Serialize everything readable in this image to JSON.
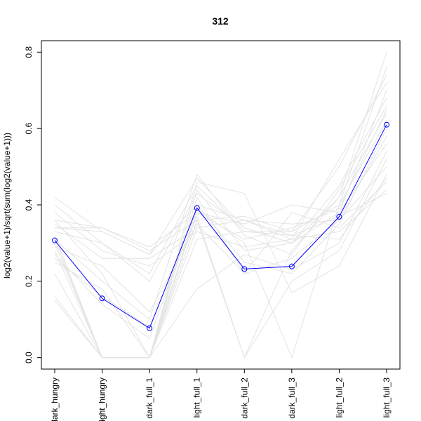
{
  "chart_data": {
    "type": "line",
    "title": "312",
    "xlabel": "",
    "ylabel": "log2(value+1)/sqrt(sum(log2(value+1)))",
    "ylim": [
      -0.03,
      0.83
    ],
    "yticks": [
      "0.0",
      "0.2",
      "0.4",
      "0.6",
      "0.8"
    ],
    "ytick_values": [
      0.0,
      0.2,
      0.4,
      0.6,
      0.8
    ],
    "categories": [
      "dark_hungry",
      "light_hungry",
      "dark_full_1",
      "light_full_1",
      "dark_full_2",
      "dark_full_3",
      "light_full_2",
      "light_full_3"
    ],
    "colors": {
      "highlight": "#0000ff",
      "background": "#e3e3e3",
      "frame": "#000000"
    },
    "highlight_series": {
      "values": [
        0.307,
        0.155,
        0.077,
        0.392,
        0.232,
        0.239,
        0.369,
        0.61
      ]
    },
    "background_series": [
      {
        "values": [
          0.42,
          0.33,
          0.27,
          0.47,
          0.34,
          0.3,
          0.42,
          0.8
        ]
      },
      {
        "values": [
          0.4,
          0.3,
          0.22,
          0.45,
          0.33,
          0.33,
          0.4,
          0.76
        ]
      },
      {
        "values": [
          0.36,
          0.34,
          0.28,
          0.36,
          0.37,
          0.33,
          0.5,
          0.74
        ]
      },
      {
        "values": [
          0.35,
          0.26,
          0.26,
          0.34,
          0.36,
          0.31,
          0.52,
          0.72
        ]
      },
      {
        "values": [
          0.34,
          0.34,
          0.29,
          0.38,
          0.35,
          0.4,
          0.38,
          0.7
        ]
      },
      {
        "values": [
          0.33,
          0.3,
          0.2,
          0.43,
          0.34,
          0.3,
          0.45,
          0.68
        ]
      },
      {
        "values": [
          0.31,
          0.2,
          0.1,
          0.48,
          0.32,
          0.27,
          0.44,
          0.66
        ]
      },
      {
        "values": [
          0.3,
          0.0,
          0.0,
          0.36,
          0.0,
          0.28,
          0.42,
          0.64
        ]
      },
      {
        "values": [
          0.28,
          0.0,
          0.0,
          0.39,
          0.3,
          0.0,
          0.4,
          0.62
        ]
      },
      {
        "values": [
          0.27,
          0.14,
          0.05,
          0.4,
          0.25,
          0.22,
          0.35,
          0.6
        ]
      },
      {
        "values": [
          0.25,
          0.18,
          0.0,
          0.42,
          0.22,
          0.26,
          0.36,
          0.58
        ]
      },
      {
        "values": [
          0.22,
          0.0,
          0.0,
          0.44,
          0.28,
          0.3,
          0.38,
          0.56
        ]
      },
      {
        "values": [
          0.16,
          0.0,
          0.0,
          0.18,
          0.27,
          0.23,
          0.3,
          0.54
        ]
      },
      {
        "values": [
          0.15,
          0.0,
          0.0,
          0.34,
          0.36,
          0.35,
          0.36,
          0.5
        ]
      },
      {
        "values": [
          0.36,
          0.22,
          0.0,
          0.46,
          0.43,
          0.17,
          0.24,
          0.48
        ]
      },
      {
        "values": [
          0.32,
          0.0,
          0.0,
          0.31,
          0.33,
          0.32,
          0.31,
          0.47
        ]
      },
      {
        "values": [
          0.29,
          0.24,
          0.12,
          0.35,
          0.22,
          0.38,
          0.34,
          0.46
        ]
      },
      {
        "values": [
          0.38,
          0.28,
          0.24,
          0.33,
          0.29,
          0.31,
          0.33,
          0.44
        ]
      },
      {
        "values": [
          0.34,
          0.33,
          0.27,
          0.4,
          0.36,
          0.32,
          0.37,
          0.43
        ]
      },
      {
        "values": [
          0.26,
          0.16,
          0.08,
          0.37,
          0.0,
          0.2,
          0.28,
          0.52
        ]
      },
      {
        "values": [
          0.31,
          0.0,
          0.0,
          0.38,
          0.31,
          0.34,
          0.39,
          0.65
        ]
      }
    ]
  }
}
